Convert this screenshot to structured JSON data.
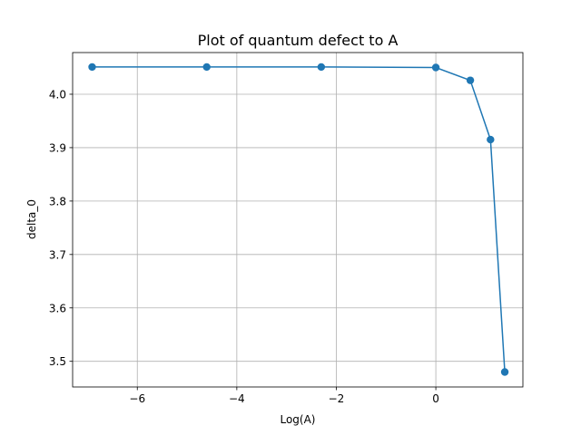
{
  "chart_data": {
    "type": "line",
    "title": "Plot of quantum defect to A",
    "xlabel": "Log(A)",
    "ylabel": "delta_0",
    "xlim": [
      -7.3,
      1.75
    ],
    "ylim": [
      3.452,
      4.078
    ],
    "xticks": [
      -6,
      -4,
      -2,
      0
    ],
    "xtick_labels": [
      "−6",
      "−4",
      "−2",
      "0"
    ],
    "yticks": [
      3.5,
      3.6,
      3.7,
      3.8,
      3.9,
      4.0
    ],
    "ytick_labels": [
      "3.5",
      "3.6",
      "3.7",
      "3.8",
      "3.9",
      "4.0"
    ],
    "grid": true,
    "series": [
      {
        "color": "#1f77b4",
        "marker": "circle",
        "x": [
          -6.908,
          -4.605,
          -2.303,
          0.0,
          0.693,
          1.099,
          1.386
        ],
        "y": [
          4.051,
          4.051,
          4.051,
          4.05,
          4.026,
          3.915,
          3.48
        ]
      }
    ]
  }
}
